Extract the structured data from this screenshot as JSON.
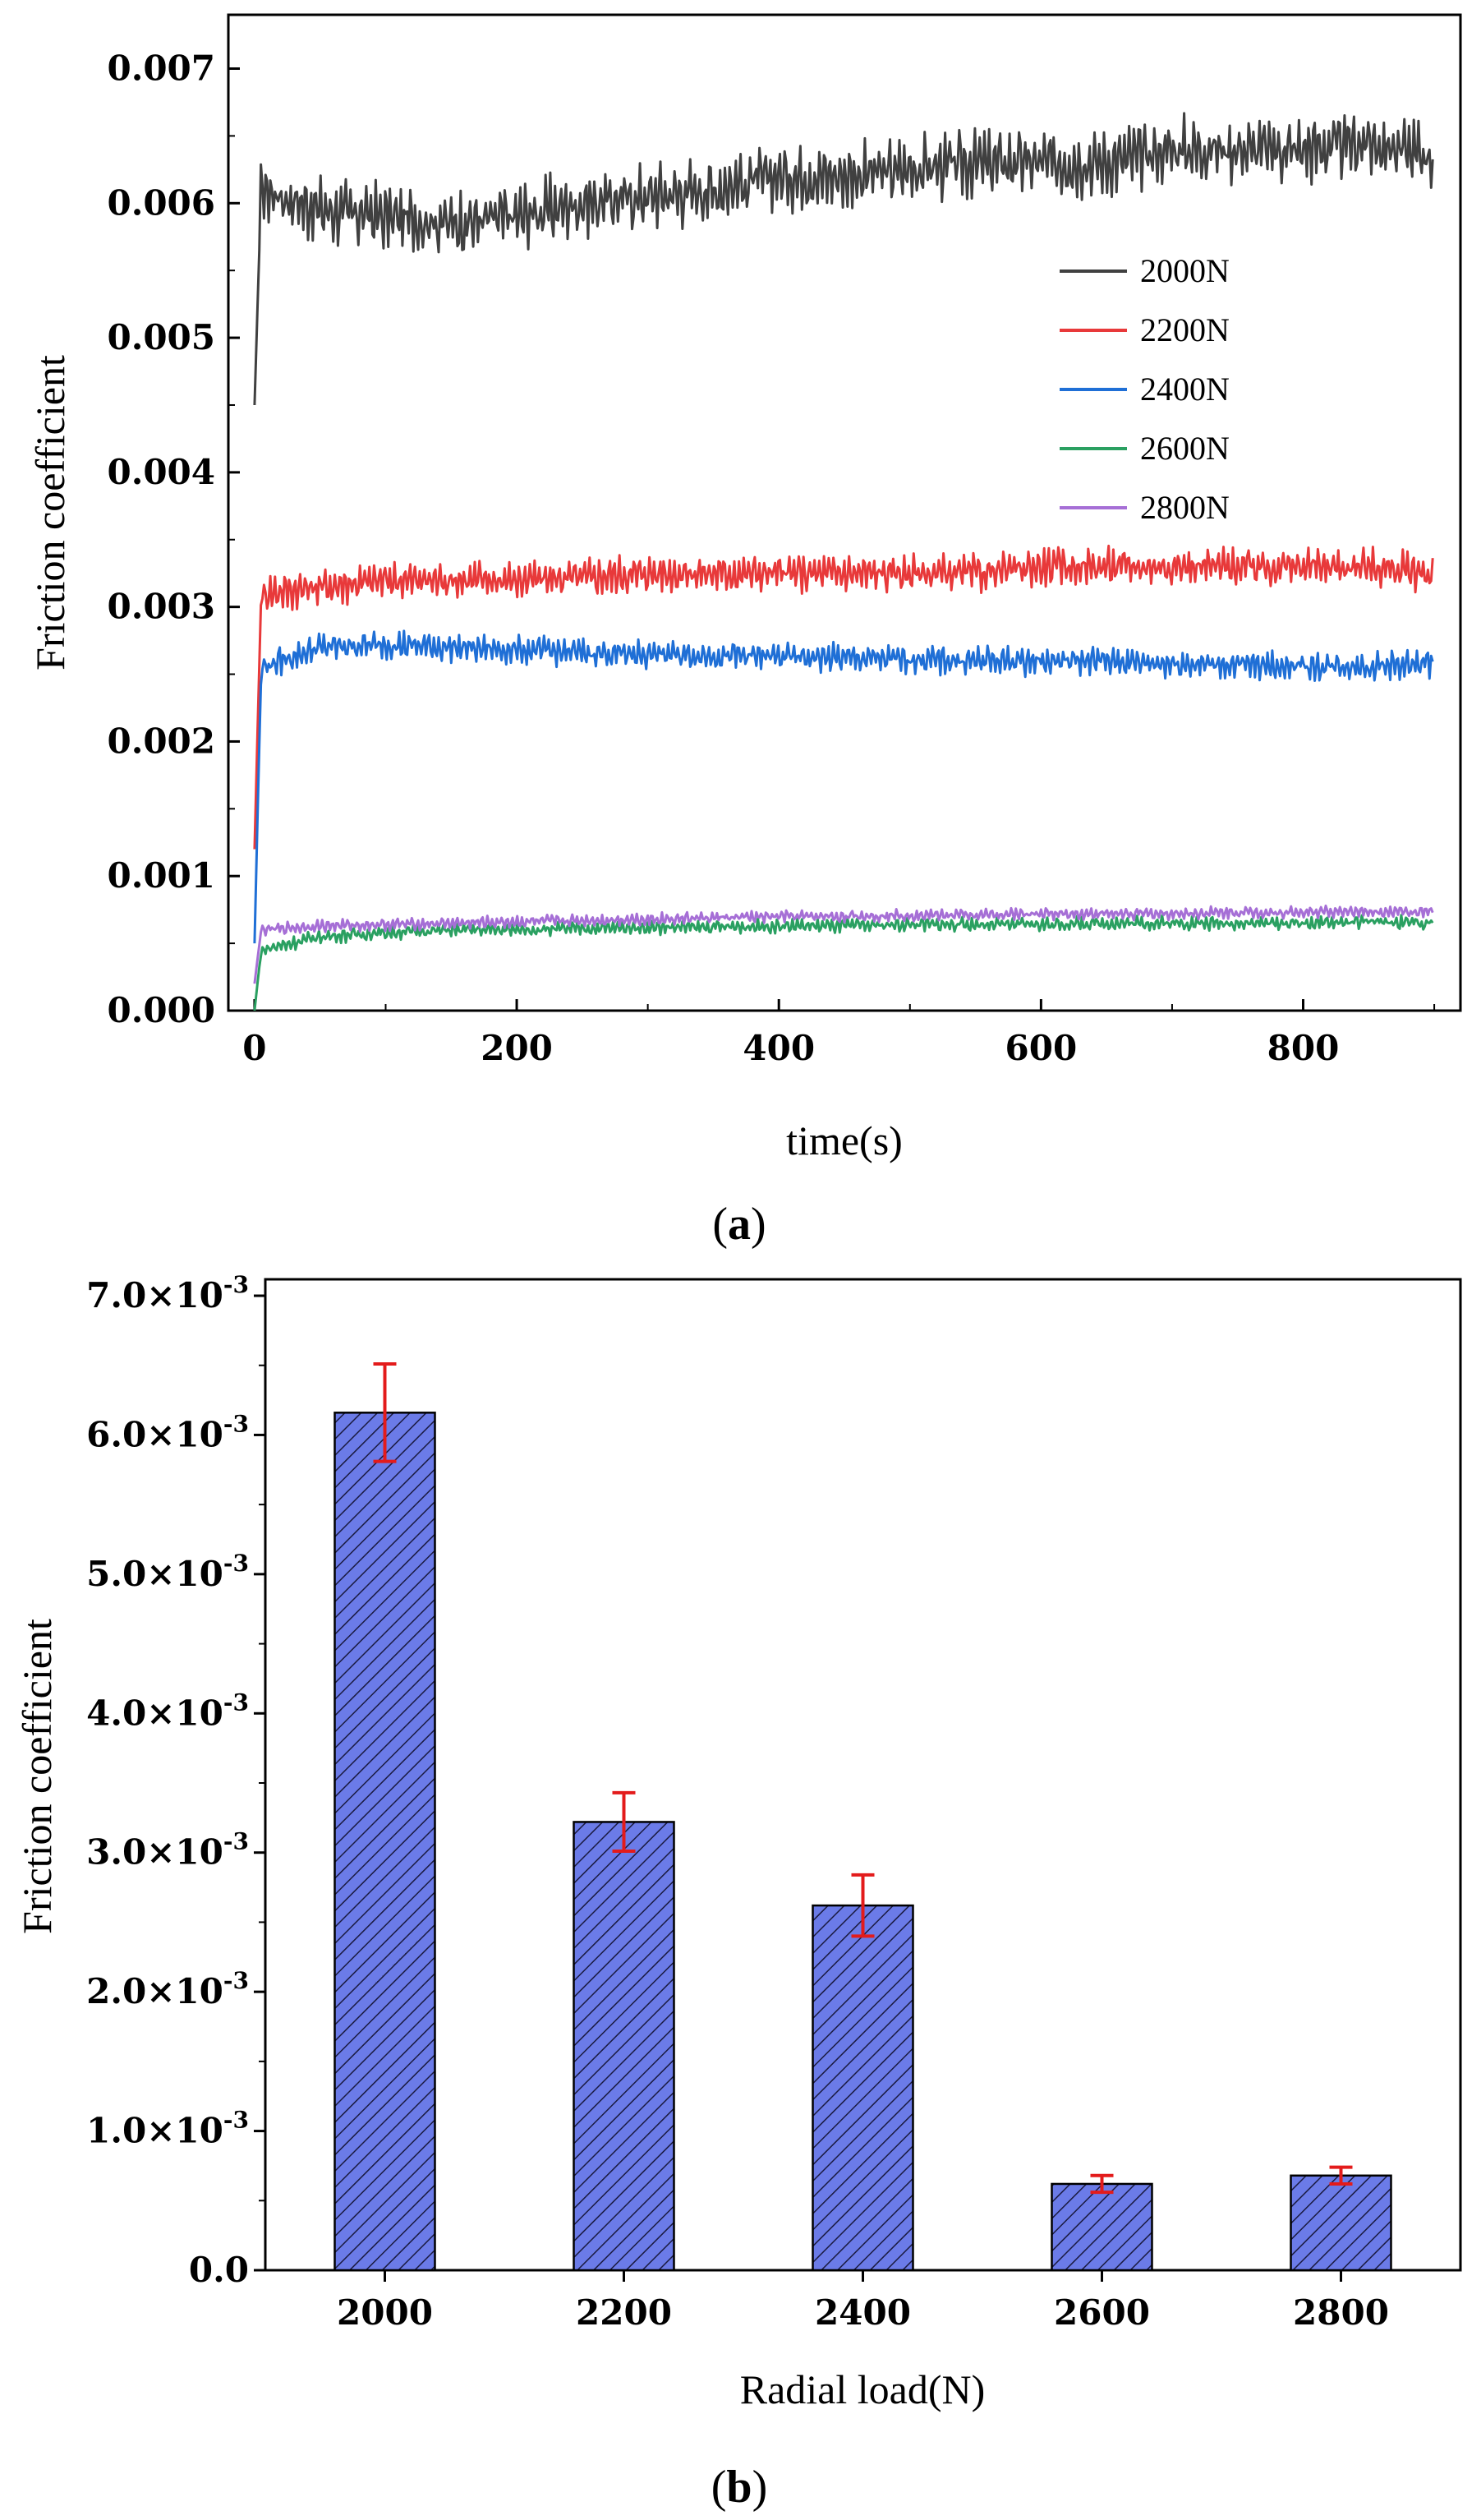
{
  "chart_data": [
    {
      "type": "line",
      "panel_label_open": "(",
      "panel_label_letter": "a",
      "panel_label_close": ")",
      "xlabel": "time(s)",
      "ylabel": "Friction coefficient",
      "xlim": [
        -20,
        920
      ],
      "ylim": [
        0,
        0.0074
      ],
      "x_ticks": [
        0,
        200,
        400,
        600,
        800
      ],
      "x_tick_labels": [
        "0",
        "200",
        "400",
        "600",
        "800"
      ],
      "y_ticks": [
        0,
        0.001,
        0.002,
        0.003,
        0.004,
        0.005,
        0.006,
        0.007
      ],
      "y_tick_labels": [
        "0.000",
        "0.001",
        "0.002",
        "0.003",
        "0.004",
        "0.005",
        "0.006",
        "0.007"
      ],
      "legend_position": "right",
      "series": [
        {
          "name": "2000N",
          "color": "#404040",
          "x": [
            0,
            5,
            50,
            100,
            150,
            200,
            250,
            300,
            350,
            400,
            450,
            500,
            550,
            600,
            650,
            700,
            750,
            800,
            850,
            900
          ],
          "values": [
            0.0045,
            0.0061,
            0.00595,
            0.0059,
            0.00585,
            0.0059,
            0.006,
            0.00605,
            0.0061,
            0.0062,
            0.0062,
            0.00625,
            0.0063,
            0.0063,
            0.0063,
            0.0064,
            0.0064,
            0.0064,
            0.00645,
            0.00635
          ],
          "noise": 0.00028
        },
        {
          "name": "2200N",
          "color": "#e8393a",
          "x": [
            0,
            5,
            50,
            100,
            150,
            200,
            250,
            300,
            350,
            400,
            450,
            500,
            550,
            600,
            650,
            700,
            750,
            800,
            850,
            900
          ],
          "values": [
            0.0012,
            0.0031,
            0.00315,
            0.0032,
            0.0032,
            0.0032,
            0.00322,
            0.00325,
            0.00325,
            0.00325,
            0.00325,
            0.00325,
            0.00325,
            0.0033,
            0.0033,
            0.0033,
            0.0033,
            0.0033,
            0.0033,
            0.00325
          ],
          "noise": 0.00016
        },
        {
          "name": "2400N",
          "color": "#1f6fd6",
          "x": [
            0,
            5,
            50,
            100,
            150,
            200,
            250,
            300,
            350,
            400,
            450,
            500,
            550,
            600,
            650,
            700,
            750,
            800,
            850,
            900
          ],
          "values": [
            0.0005,
            0.00255,
            0.0027,
            0.00272,
            0.0027,
            0.00268,
            0.00266,
            0.00265,
            0.00264,
            0.00263,
            0.00262,
            0.00261,
            0.0026,
            0.0026,
            0.0026,
            0.00258,
            0.00257,
            0.00256,
            0.00256,
            0.00258
          ],
          "noise": 0.00012
        },
        {
          "name": "2600N",
          "color": "#2aa061",
          "x": [
            0,
            5,
            50,
            100,
            150,
            200,
            250,
            300,
            350,
            400,
            450,
            500,
            550,
            600,
            650,
            700,
            750,
            800,
            850,
            900
          ],
          "values": [
            0.0,
            0.00045,
            0.00055,
            0.00058,
            0.0006,
            0.0006,
            0.00061,
            0.00062,
            0.00062,
            0.00063,
            0.00063,
            0.00064,
            0.00064,
            0.00064,
            0.00065,
            0.00065,
            0.00065,
            0.00065,
            0.00066,
            0.00065
          ],
          "noise": 6e-05
        },
        {
          "name": "2800N",
          "color": "#a66fd6",
          "x": [
            0,
            5,
            50,
            100,
            150,
            200,
            250,
            300,
            350,
            400,
            450,
            500,
            550,
            600,
            650,
            700,
            750,
            800,
            850,
            900
          ],
          "values": [
            0.0002,
            0.0006,
            0.00063,
            0.00064,
            0.00065,
            0.00066,
            0.00067,
            0.00068,
            0.00069,
            0.0007,
            0.0007,
            0.00071,
            0.00071,
            0.00072,
            0.00072,
            0.00072,
            0.00073,
            0.00073,
            0.00074,
            0.00073
          ],
          "noise": 5e-05
        }
      ]
    },
    {
      "type": "bar",
      "panel_label_open": "(",
      "panel_label_letter": "b",
      "panel_label_close": ")",
      "xlabel": "Radial load(N)",
      "ylabel": "Friction coefficient",
      "categories": [
        "2000",
        "2200",
        "2400",
        "2600",
        "2800"
      ],
      "values": [
        0.00616,
        0.00322,
        0.00262,
        0.00062,
        0.00068
      ],
      "errors": [
        0.00035,
        0.00021,
        0.00022,
        6e-05,
        6e-05
      ],
      "ylim": [
        0,
        0.007
      ],
      "y_ticks": [
        0,
        0.001,
        0.002,
        0.003,
        0.004,
        0.005,
        0.006,
        0.007
      ],
      "y_tick_labels": [
        {
          "mantissa": "0.0",
          "exp": ""
        },
        {
          "mantissa": "1.0×10",
          "exp": "-3"
        },
        {
          "mantissa": "2.0×10",
          "exp": "-3"
        },
        {
          "mantissa": "3.0×10",
          "exp": "-3"
        },
        {
          "mantissa": "4.0×10",
          "exp": "-3"
        },
        {
          "mantissa": "5.0×10",
          "exp": "-3"
        },
        {
          "mantissa": "6.0×10",
          "exp": "-3"
        },
        {
          "mantissa": "7.0×10",
          "exp": "-3"
        }
      ],
      "bar_color": "#6b7be8",
      "error_color": "#e31b1b",
      "hatch": "diagonal"
    }
  ]
}
